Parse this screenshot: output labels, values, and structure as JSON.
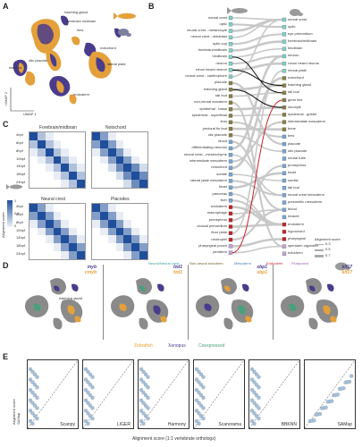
{
  "panel_labels": {
    "A": "A",
    "B": "B",
    "C": "C",
    "D": "D",
    "E": "E"
  },
  "panel_a": {
    "xlabel": "UMAP 1",
    "ylabel": "UMAP 2",
    "annotations": [
      "forebrain/\nmidbrain",
      "lens",
      "hatching gland",
      "neural crest",
      "otic\nplacode",
      "lateral\nplate",
      "blastula",
      "tail\nbud",
      "epidermis",
      "notochord",
      "blastoderm",
      "hindbrain/\nspinal cord",
      "endoderm",
      "neural plate",
      "muscle"
    ]
  },
  "panel_b": {
    "left_labels": [
      "neural crest",
      "optic",
      "neural crest - melanocyte",
      "neural crest - iridoblast",
      "optic cup",
      "forebrain/midbrain",
      "hindbrain",
      "neuron",
      "rohon beard neuron",
      "neural crest - xanthophore",
      "placode",
      "hatching gland",
      "tail bud",
      "non-neural ectoderm",
      "epidermal - basal",
      "epidermal - superficial",
      "lens",
      "pectoral fin bud",
      "otic placode",
      "blood",
      "differentiating neurons",
      "neural crest - mesenchyme",
      "intermediate mesoderm",
      "notochord",
      "somite",
      "lateral plate mesoderm",
      "heart",
      "pancreas",
      "liver",
      "endoderm",
      "macrophage",
      "pronephros",
      "cloacal primordium",
      "floor plate",
      "neutrophil",
      "pharyngeal pouch",
      "periderm"
    ],
    "right_labels": [
      "neural crest",
      "optic",
      "eye primordium",
      "forebrain/midbrain",
      "hindbrain",
      "neuron",
      "rohon beard neuron",
      "neural plate",
      "notochord",
      "hatching gland",
      "tail bud",
      "germ line",
      "ionocyte",
      "epidermal - goblet",
      "intermediate mesoderm",
      "bone",
      "lens",
      "placode",
      "otic placode",
      "neural tube",
      "pronephros",
      "heart",
      "somite",
      "tail bud",
      "neural crest mesoderm",
      "presomitic mesoderm",
      "blood",
      "muscle",
      "endoderm",
      "hypochord",
      "pharyngeal",
      "spemann organizer",
      "ectoderm"
    ],
    "legend_title": "Alignment score",
    "legend_values": [
      "0.3",
      "0.5",
      "0.7"
    ],
    "categories": [
      "Neural/Neural crest",
      "Non-neural ectoderm",
      "Mesoderm",
      "Endoderm",
      "Pluripotent"
    ],
    "category_colors": [
      "#7fd3c8",
      "#8a7f42",
      "#7aa6d6",
      "#c8222b",
      "#c7a1d8"
    ]
  },
  "panel_c": {
    "titles": [
      "Forebrain/midbrain",
      "Notochord",
      "Neural crest",
      "Placodes"
    ],
    "row_labels": [
      "4hpf",
      "6hpf",
      "8hpf",
      "10hpf",
      "14hpf",
      "18hpf",
      "24hpf"
    ],
    "legend_label": "Alignment score",
    "legend_ticks": [
      "0",
      "0.5",
      "1"
    ],
    "color_dark": "#1f4e9a",
    "color_light": "#eef4fb"
  },
  "panel_d": {
    "genes": [
      {
        "x": "myb",
        "z": "cmyb"
      },
      {
        "x": "fzd1",
        "z": "fzd1"
      },
      {
        "x": "xbp1",
        "z": "xbp1"
      },
      {
        "x": "klf17",
        "z": "klf17"
      }
    ],
    "legend": [
      "Zebrafish",
      "Xenopus",
      "Coexpressed"
    ],
    "legend_colors": [
      "#e4a03a",
      "#4a3c8c",
      "#49a07a"
    ],
    "sub_annotations": [
      "forebrain glial",
      "hatching gland",
      "epidermis"
    ]
  },
  "panel_e": {
    "methods": [
      "Scanpy",
      "LIGER",
      "Harmony",
      "Scanorama",
      "BBKNN",
      "SAMap"
    ],
    "ylabel": "Alignment score\nSAMap",
    "xlabel": "Alignment score (1:1 vertebrate orthologs)",
    "point_color": "#a9c0d6"
  }
}
